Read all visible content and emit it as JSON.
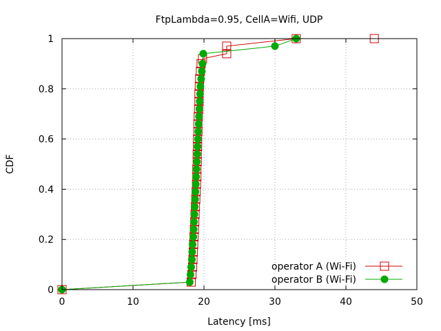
{
  "chart_data": {
    "type": "line",
    "title": "FtpLambda=0.95, CellA=Wifi, UDP",
    "xlabel": "Latency [ms]",
    "ylabel": "CDF",
    "xlim": [
      0,
      50
    ],
    "ylim": [
      0,
      1
    ],
    "x_ticks": [
      "0",
      "10",
      "20",
      "30",
      "40",
      "50"
    ],
    "y_ticks": [
      "0",
      "0.2",
      "0.4",
      "0.6",
      "0.8",
      "1"
    ],
    "grid": true,
    "legend_position": "bottom-right",
    "series": [
      {
        "name": "operator A (Wi-Fi)",
        "color": "#cc0000",
        "marker": "open-square",
        "points": [
          [
            0,
            0
          ],
          [
            18.2,
            0.03
          ],
          [
            18.3,
            0.06
          ],
          [
            18.4,
            0.09
          ],
          [
            18.45,
            0.12
          ],
          [
            18.5,
            0.15
          ],
          [
            18.55,
            0.18
          ],
          [
            18.6,
            0.21
          ],
          [
            18.65,
            0.24
          ],
          [
            18.7,
            0.27
          ],
          [
            18.75,
            0.3
          ],
          [
            18.8,
            0.33
          ],
          [
            18.85,
            0.36
          ],
          [
            18.9,
            0.39
          ],
          [
            18.95,
            0.42
          ],
          [
            19.0,
            0.45
          ],
          [
            19.0,
            0.48
          ],
          [
            19.05,
            0.51
          ],
          [
            19.05,
            0.54
          ],
          [
            19.1,
            0.57
          ],
          [
            19.1,
            0.6
          ],
          [
            19.15,
            0.63
          ],
          [
            19.15,
            0.66
          ],
          [
            19.2,
            0.69
          ],
          [
            19.25,
            0.72
          ],
          [
            19.3,
            0.75
          ],
          [
            19.3,
            0.78
          ],
          [
            19.35,
            0.81
          ],
          [
            19.4,
            0.84
          ],
          [
            19.5,
            0.87
          ],
          [
            19.6,
            0.9
          ],
          [
            19.8,
            0.92
          ],
          [
            23.2,
            0.94
          ],
          [
            23.2,
            0.97
          ],
          [
            33.0,
            1.0
          ],
          [
            44.0,
            1.0
          ]
        ]
      },
      {
        "name": "operator B (Wi-Fi)",
        "color": "#00aa00",
        "marker": "filled-circle",
        "points": [
          [
            0,
            0
          ],
          [
            18.0,
            0.03
          ],
          [
            18.1,
            0.06
          ],
          [
            18.2,
            0.09
          ],
          [
            18.3,
            0.12
          ],
          [
            18.35,
            0.15
          ],
          [
            18.4,
            0.18
          ],
          [
            18.5,
            0.21
          ],
          [
            18.55,
            0.24
          ],
          [
            18.6,
            0.27
          ],
          [
            18.65,
            0.3
          ],
          [
            18.7,
            0.33
          ],
          [
            18.75,
            0.36
          ],
          [
            18.8,
            0.39
          ],
          [
            18.85,
            0.42
          ],
          [
            18.9,
            0.45
          ],
          [
            18.95,
            0.48
          ],
          [
            19.0,
            0.51
          ],
          [
            19.05,
            0.54
          ],
          [
            19.1,
            0.57
          ],
          [
            19.15,
            0.6
          ],
          [
            19.2,
            0.63
          ],
          [
            19.25,
            0.66
          ],
          [
            19.3,
            0.69
          ],
          [
            19.35,
            0.72
          ],
          [
            19.4,
            0.75
          ],
          [
            19.45,
            0.78
          ],
          [
            19.5,
            0.81
          ],
          [
            19.6,
            0.84
          ],
          [
            19.7,
            0.87
          ],
          [
            19.8,
            0.9
          ],
          [
            19.9,
            0.94
          ],
          [
            30.0,
            0.97
          ],
          [
            33.0,
            1.0
          ]
        ]
      }
    ]
  }
}
